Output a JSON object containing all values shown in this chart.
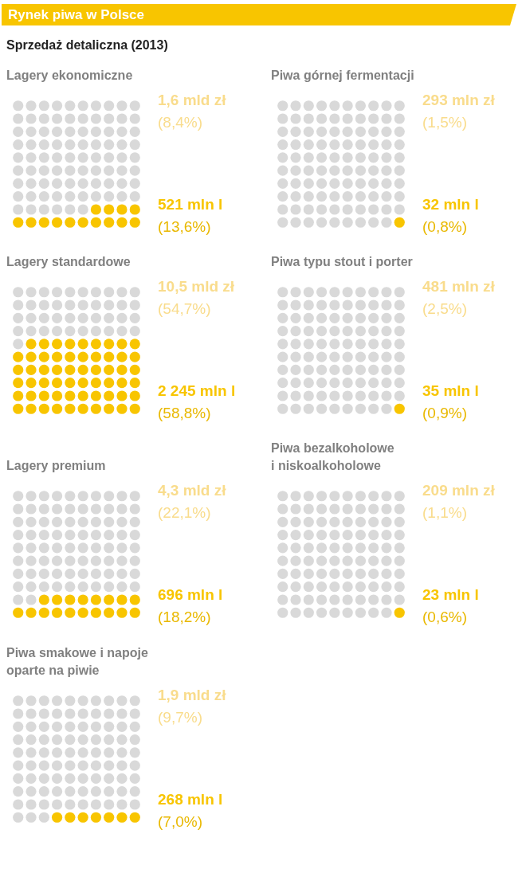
{
  "chart_data": [
    {
      "type": "other",
      "title": "Rynek piwa w Polsce",
      "subtitle": "Sprzedaż detaliczna (2013)",
      "color": "#f8c500"
    },
    {
      "type": "other",
      "title": "Lagery ekonomiczne",
      "values": [
        13.6
      ],
      "value_labels": [
        "(13,6%)"
      ],
      "annotations": [
        "1,6 mld zł",
        "(8,4%)",
        "521 mln l"
      ],
      "color": "#f8c500"
    },
    {
      "type": "other",
      "title": "Piwa górnej fermentacji",
      "values": [
        0.8
      ],
      "value_labels": [
        "(0,8%)"
      ],
      "annotations": [
        "293 mln zł",
        "(1,5%)",
        "32 mln l"
      ],
      "color": "#f8c500"
    },
    {
      "type": "other",
      "title": "Lagery standardowe",
      "values": [
        58.8
      ],
      "value_labels": [
        "(58,8%)"
      ],
      "annotations": [
        "10,5 mld zł",
        "(54,7%)",
        "2 245 mln l"
      ],
      "color": "#f8c500"
    },
    {
      "type": "other",
      "title": "Piwa typu stout i porter",
      "values": [
        0.9
      ],
      "value_labels": [
        "(0,9%)"
      ],
      "annotations": [
        "481 mln zł",
        "(2,5%)",
        "35 mln l"
      ],
      "color": "#f8c500"
    },
    {
      "type": "other",
      "title": "Lagery premium",
      "values": [
        18.2
      ],
      "value_labels": [
        "(18,2%)"
      ],
      "annotations": [
        "4,3 mld zł",
        "(22,1%)",
        "696 mln l"
      ],
      "color": "#f8c500"
    },
    {
      "type": "other",
      "title": "Piwa bezalkoholowe\ni niskoalkoholowe",
      "values": [
        0.6
      ],
      "value_labels": [
        "(0,6%)"
      ],
      "annotations": [
        "209 mln zł",
        "(1,1%)",
        "23 mln l"
      ],
      "color": "#f8c500"
    },
    {
      "type": "other",
      "title": "Piwa smakowe i napoje\noparte na piwie",
      "values": [
        7.0
      ],
      "value_labels": [
        "(7,0%)"
      ],
      "annotations": [
        "1,9 mld zł",
        "(9,7%)",
        "268 mln l"
      ],
      "color": "#f8c500"
    }
  ]
}
